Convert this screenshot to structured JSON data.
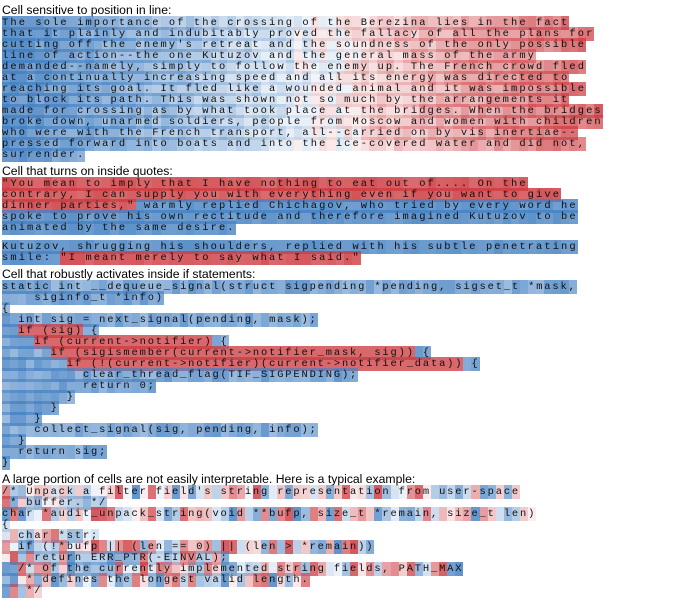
{
  "sections": [
    {
      "title": "Cell sensitive to position in line:",
      "type": "prose",
      "blocks": [
        {
          "lines": [
            "The sole importance of the crossing of the Berezina lies in the fact",
            "that it plainly and indubitably proved the fallacy of all the plans for",
            "cutting off the enemy's retreat and the soundness of the only possible",
            "line of action--the one Kutuzov and the general mass of the army",
            "demanded--namely, simply to follow the enemy up. The French crowd fled",
            "at a continually increasing speed and all its energy was directed to",
            "reaching its goal. It fled like a wounded animal and it was impossible",
            "to block its path. This was shown not so much by the arrangements it",
            "made for crossing as by what took place at the bridges. When the bridges",
            "broke down, unarmed soldiers, people from Moscow and women with children",
            "who were with the French transport, all--carried on by vis inertiae--",
            "pressed forward into boats and into the ice-covered water and did not,",
            "surrender."
          ]
        }
      ]
    },
    {
      "title": "Cell that turns on inside quotes:",
      "type": "prose",
      "blocks": [
        {
          "lines": [
            "\"You mean to imply that I have nothing to eat out of.... On the",
            "contrary, I can supply you with everything even if you want to give",
            "dinner parties,\" warmly replied Chichagov, who tried by every word he",
            "spoke to prove his own rectitude and therefore imagined Kutuzov to be",
            "animated by the same desire."
          ]
        },
        {
          "lines": [
            "Kutuzov, shrugging his shoulders, replied with his subtle penetrating",
            "smile: \"I meant merely to say what I said.\""
          ]
        }
      ]
    },
    {
      "title": "Cell that robustly activates inside if statements:",
      "type": "code",
      "blocks": [
        {
          "lines": [
            "static int __dequeue_signal(struct sigpending *pending, sigset_t *mask,",
            "    siginfo_t *info)",
            "{",
            "  int sig = next_signal(pending, mask);",
            "  if (sig) {",
            "    if (current->notifier) {",
            "      if (sigismember(current->notifier_mask, sig)) {",
            "        if (!(current->notifier)(current->notifier_data)) {",
            "          clear_thread_flag(TIF_SIGPENDING);",
            "          return 0;",
            "        }",
            "      }",
            "    }",
            "    collect_signal(sig, pending, info);",
            "  }",
            "  return sig;",
            "}"
          ]
        }
      ]
    },
    {
      "title": "A large portion of cells are not easily interpretable. Here is a typical example:",
      "type": "code",
      "blocks": [
        {
          "lines": [
            "/* Unpack a filter field's string representation from user-space",
            " * buffer. */",
            "char *audit_unpack_string(void **bufp, size_t *remain, size_t len)",
            "{",
            "  char *str;",
            "  if (!*bufp || (len == 0) || (len > *remain))",
            "    return ERR_PTR(-EINVAL);",
            "  /* Of the currently implemented string fields, PATH_MAX",
            "   * defines the longest valid length.",
            "   */"
          ]
        }
      ]
    }
  ]
}
